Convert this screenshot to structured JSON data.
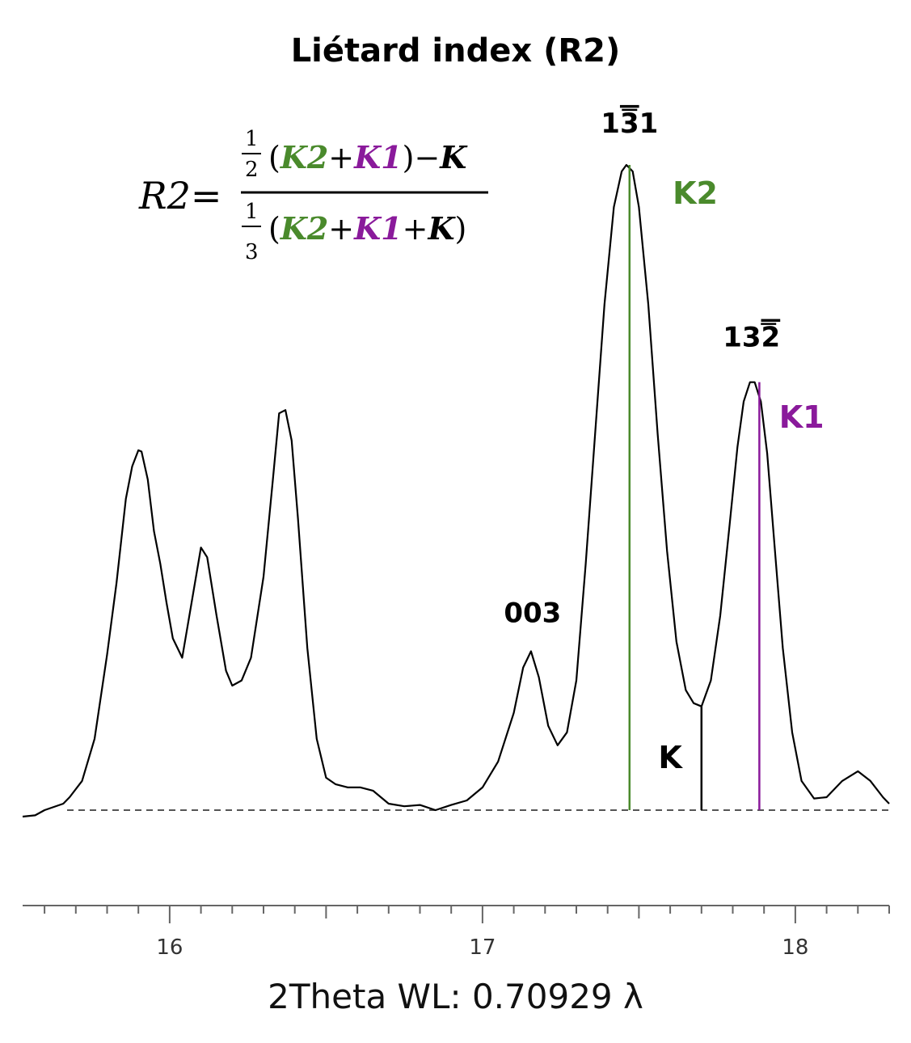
{
  "chart_data": {
    "type": "line",
    "title": "Liétard index (R2)",
    "xlabel": "2Theta WL: 0.70929 λ",
    "ylabel": "",
    "xlim": [
      15.53,
      18.3
    ],
    "ylim": [
      0,
      1.0
    ],
    "x_ticks": [
      16,
      17,
      18
    ],
    "x_minor_step": 0.1,
    "grid": false,
    "baseline": 0,
    "series": [
      {
        "name": "",
        "color": "#000000",
        "points": [
          [
            15.53,
            -0.01
          ],
          [
            15.57,
            -0.008
          ],
          [
            15.6,
            0.0
          ],
          [
            15.63,
            0.005
          ],
          [
            15.66,
            0.01
          ],
          [
            15.68,
            0.02
          ],
          [
            15.72,
            0.045
          ],
          [
            15.76,
            0.11
          ],
          [
            15.8,
            0.24
          ],
          [
            15.83,
            0.35
          ],
          [
            15.86,
            0.48
          ],
          [
            15.88,
            0.53
          ],
          [
            15.9,
            0.555
          ],
          [
            15.91,
            0.553
          ],
          [
            15.93,
            0.51
          ],
          [
            15.95,
            0.43
          ],
          [
            15.97,
            0.38
          ],
          [
            15.99,
            0.32
          ],
          [
            16.01,
            0.265
          ],
          [
            16.04,
            0.235
          ],
          [
            16.07,
            0.32
          ],
          [
            16.1,
            0.405
          ],
          [
            16.12,
            0.39
          ],
          [
            16.15,
            0.3
          ],
          [
            16.18,
            0.215
          ],
          [
            16.2,
            0.192
          ],
          [
            16.23,
            0.2
          ],
          [
            16.26,
            0.235
          ],
          [
            16.3,
            0.36
          ],
          [
            16.33,
            0.51
          ],
          [
            16.35,
            0.612
          ],
          [
            16.37,
            0.617
          ],
          [
            16.39,
            0.57
          ],
          [
            16.41,
            0.45
          ],
          [
            16.44,
            0.25
          ],
          [
            16.47,
            0.11
          ],
          [
            16.5,
            0.05
          ],
          [
            16.53,
            0.04
          ],
          [
            16.57,
            0.035
          ],
          [
            16.61,
            0.035
          ],
          [
            16.65,
            0.03
          ],
          [
            16.7,
            0.01
          ],
          [
            16.75,
            0.006
          ],
          [
            16.8,
            0.008
          ],
          [
            16.85,
            0.0
          ],
          [
            16.9,
            0.008
          ],
          [
            16.95,
            0.015
          ],
          [
            17.0,
            0.035
          ],
          [
            17.05,
            0.075
          ],
          [
            17.1,
            0.15
          ],
          [
            17.13,
            0.22
          ],
          [
            17.155,
            0.245
          ],
          [
            17.18,
            0.205
          ],
          [
            17.21,
            0.13
          ],
          [
            17.24,
            0.1
          ],
          [
            17.27,
            0.12
          ],
          [
            17.3,
            0.2
          ],
          [
            17.33,
            0.38
          ],
          [
            17.36,
            0.58
          ],
          [
            17.39,
            0.78
          ],
          [
            17.42,
            0.93
          ],
          [
            17.445,
            0.985
          ],
          [
            17.46,
            0.995
          ],
          [
            17.48,
            0.985
          ],
          [
            17.5,
            0.93
          ],
          [
            17.53,
            0.78
          ],
          [
            17.56,
            0.58
          ],
          [
            17.59,
            0.4
          ],
          [
            17.62,
            0.26
          ],
          [
            17.65,
            0.185
          ],
          [
            17.675,
            0.165
          ],
          [
            17.7,
            0.16
          ],
          [
            17.73,
            0.2
          ],
          [
            17.76,
            0.3
          ],
          [
            17.79,
            0.44
          ],
          [
            17.815,
            0.56
          ],
          [
            17.835,
            0.63
          ],
          [
            17.855,
            0.66
          ],
          [
            17.87,
            0.66
          ],
          [
            17.89,
            0.63
          ],
          [
            17.91,
            0.55
          ],
          [
            17.935,
            0.4
          ],
          [
            17.96,
            0.25
          ],
          [
            17.99,
            0.12
          ],
          [
            18.02,
            0.045
          ],
          [
            18.06,
            0.018
          ],
          [
            18.1,
            0.02
          ],
          [
            18.15,
            0.045
          ],
          [
            18.2,
            0.06
          ],
          [
            18.24,
            0.045
          ],
          [
            18.28,
            0.02
          ],
          [
            18.3,
            0.01
          ]
        ]
      }
    ],
    "peak_labels": [
      {
        "text": "003",
        "x": 17.16,
        "y": 0.29
      },
      {
        "text": "1",
        "over": "3",
        "rest": "1",
        "x": 17.47,
        "y": 1.045
      },
      {
        "text": "13",
        "over": "2",
        "rest": "",
        "x": 17.86,
        "y": 0.715
      }
    ],
    "markers": [
      {
        "name": "K2",
        "x": 17.47,
        "y_top": 0.995,
        "color": "#4a8a2c",
        "label_x": 17.68,
        "label_y": 0.935
      },
      {
        "name": "K",
        "x": 17.7,
        "y_top": 0.16,
        "color": "#000000",
        "label_x": 17.6,
        "label_y": 0.065
      },
      {
        "name": "K1",
        "x": 17.885,
        "y_top": 0.66,
        "color": "#8a1a9b",
        "label_x": 18.02,
        "label_y": 0.59
      }
    ]
  },
  "formula": {
    "lhs": "R2=",
    "num_frac_top": "1",
    "num_frac_bottom": "2",
    "den_frac_top": "1",
    "den_frac_bottom": "3",
    "open": "(",
    "close": ")",
    "plus": "+",
    "minus": "−",
    "k2": "K2",
    "k1": "K1",
    "k": "K"
  },
  "colors": {
    "k2": "#4a8a2c",
    "k1": "#8a1a9b",
    "k": "#000000",
    "curve": "#000000",
    "baseline": "#555555",
    "axis": "#666666"
  }
}
